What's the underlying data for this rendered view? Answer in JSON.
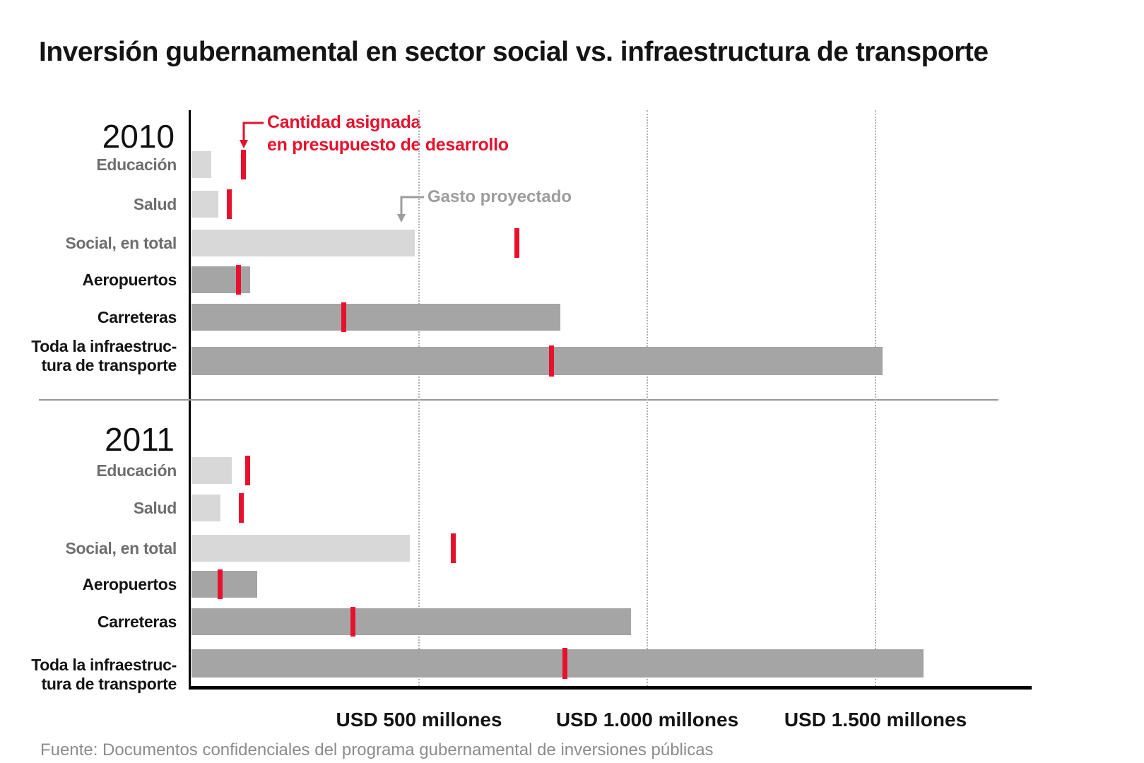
{
  "title": "Inversión gubernamental en sector social vs. infraestructura de transporte",
  "annotations": {
    "allocated": {
      "line1": "Cantidad asignada",
      "line2": "en presupuesto de desarrollo"
    },
    "projected": "Gasto proyectado"
  },
  "axis": {
    "ticks": [
      {
        "value": 500,
        "label": "USD 500 millones"
      },
      {
        "value": 1000,
        "label": "USD 1.000 millones"
      },
      {
        "value": 1500,
        "label": "USD 1.500 millones"
      }
    ]
  },
  "footer": "Fuente: Documentos confidenciales del programa gubernamental de inversiones públicas",
  "colors": {
    "allocated_red": "#e8112d",
    "projected_light_gray": "#d8d8d8",
    "projected_dark_gray": "#a5a5a5",
    "social_label_gray": "#6e6e6e",
    "annotation_gray": "#9d9d9d"
  },
  "chart_data": {
    "type": "bar",
    "orientation": "horizontal",
    "unit": "USD millones",
    "xlim": [
      0,
      1800
    ],
    "grid": "dotted vertical at 500/1000/1500",
    "legend": {
      "bar": "Gasto proyectado",
      "tick": "Cantidad asignada en presupuesto de desarrollo"
    },
    "panels": [
      {
        "year": "2010",
        "rows": [
          {
            "id": "educacion",
            "label": "Educación",
            "group": "social",
            "projected": 45,
            "allocated": 115
          },
          {
            "id": "salud",
            "label": "Salud",
            "group": "social",
            "projected": 60,
            "allocated": 85
          },
          {
            "id": "social-total",
            "label": "Social, en total",
            "group": "social",
            "projected": 490,
            "allocated": 715
          },
          {
            "id": "aeropuertos",
            "label": "Aeropuertos",
            "group": "transport",
            "projected": 130,
            "allocated": 105
          },
          {
            "id": "carreteras",
            "label": "Carreteras",
            "group": "transport",
            "projected": 810,
            "allocated": 335
          },
          {
            "id": "infraestructura-total",
            "label_lines": [
              "Toda la infraestruc-",
              "tura  de transporte"
            ],
            "group": "transport",
            "projected": 1515,
            "allocated": 790
          }
        ]
      },
      {
        "year": "2011",
        "rows": [
          {
            "id": "educacion",
            "label": "Educación",
            "group": "social",
            "projected": 90,
            "allocated": 125
          },
          {
            "id": "salud",
            "label": "Salud",
            "group": "social",
            "projected": 65,
            "allocated": 110
          },
          {
            "id": "social-total",
            "label": "Social, en total",
            "group": "social",
            "projected": 480,
            "allocated": 575
          },
          {
            "id": "aeropuertos",
            "label": "Aeropuertos",
            "group": "transport",
            "projected": 145,
            "allocated": 65
          },
          {
            "id": "carreteras",
            "label": "Carreteras",
            "group": "transport",
            "projected": 965,
            "allocated": 355
          },
          {
            "id": "infraestructura-total",
            "label_lines": [
              "Toda la infraestruc-",
              "tura  de transporte"
            ],
            "group": "transport",
            "projected": 1605,
            "allocated": 820
          }
        ]
      }
    ]
  }
}
